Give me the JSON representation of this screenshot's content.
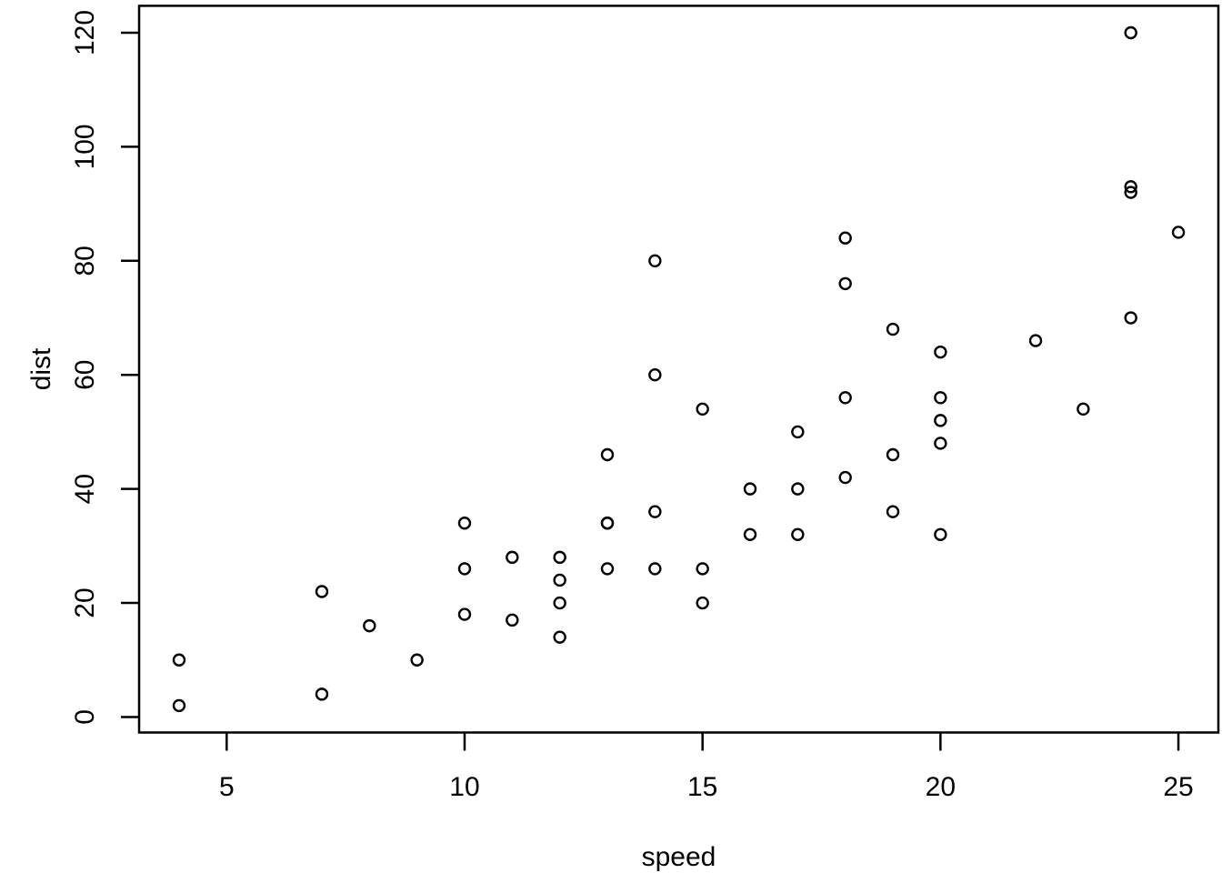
{
  "figure": {
    "background_color": "#ffffff",
    "foreground_color": "#000000"
  },
  "chart_data": {
    "type": "scatter",
    "title": "",
    "xlabel": "speed",
    "ylabel": "dist",
    "x_ticks": [
      5,
      10,
      15,
      20,
      25
    ],
    "y_ticks": [
      0,
      20,
      40,
      60,
      80,
      100,
      120
    ],
    "xlim": [
      3.16,
      25.84
    ],
    "ylim": [
      -2.72,
      124.72
    ],
    "grid": false,
    "legend": null,
    "marker": "open-circle",
    "marker_color": "#000000",
    "columns": [
      "speed",
      "dist"
    ],
    "points": [
      [
        4,
        2
      ],
      [
        4,
        10
      ],
      [
        7,
        4
      ],
      [
        7,
        22
      ],
      [
        8,
        16
      ],
      [
        9,
        10
      ],
      [
        10,
        18
      ],
      [
        10,
        26
      ],
      [
        10,
        34
      ],
      [
        11,
        17
      ],
      [
        11,
        28
      ],
      [
        12,
        14
      ],
      [
        12,
        20
      ],
      [
        12,
        24
      ],
      [
        12,
        28
      ],
      [
        13,
        26
      ],
      [
        13,
        34
      ],
      [
        13,
        34
      ],
      [
        13,
        46
      ],
      [
        14,
        26
      ],
      [
        14,
        36
      ],
      [
        14,
        60
      ],
      [
        14,
        80
      ],
      [
        15,
        20
      ],
      [
        15,
        26
      ],
      [
        15,
        54
      ],
      [
        16,
        32
      ],
      [
        16,
        40
      ],
      [
        17,
        32
      ],
      [
        17,
        40
      ],
      [
        17,
        50
      ],
      [
        18,
        42
      ],
      [
        18,
        56
      ],
      [
        18,
        76
      ],
      [
        18,
        84
      ],
      [
        19,
        36
      ],
      [
        19,
        46
      ],
      [
        19,
        68
      ],
      [
        20,
        32
      ],
      [
        20,
        48
      ],
      [
        20,
        52
      ],
      [
        20,
        56
      ],
      [
        20,
        64
      ],
      [
        22,
        66
      ],
      [
        23,
        54
      ],
      [
        24,
        70
      ],
      [
        24,
        92
      ],
      [
        24,
        93
      ],
      [
        24,
        120
      ],
      [
        25,
        85
      ]
    ]
  }
}
